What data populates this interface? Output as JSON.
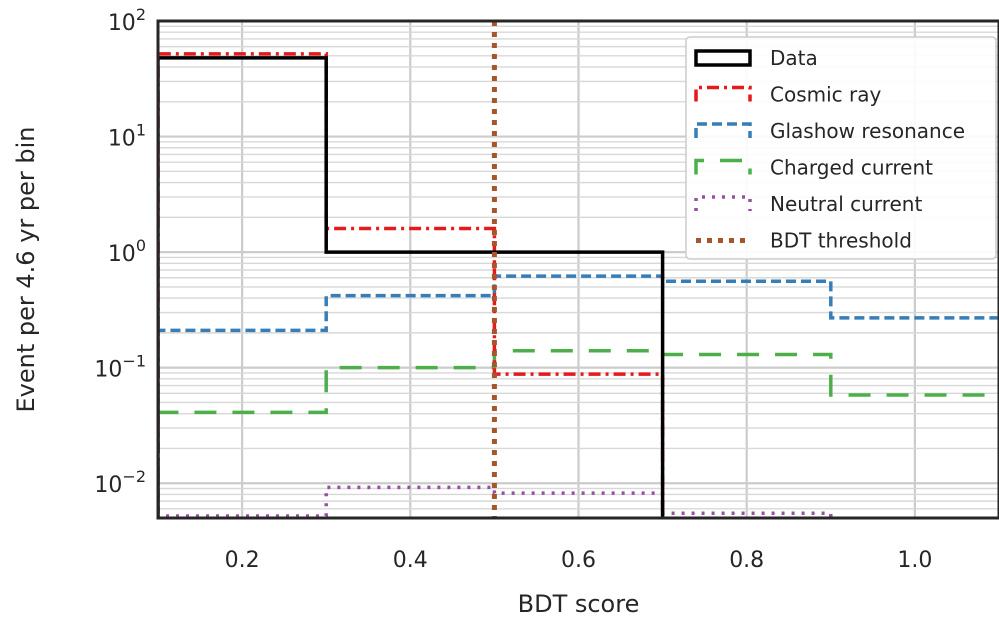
{
  "chart_data": {
    "type": "line",
    "step": "post",
    "title": "",
    "xlabel": "BDT score",
    "ylabel": "Event per 4.6 yr per bin",
    "xlim": [
      0.1,
      1.1
    ],
    "ylim": [
      0.005,
      100
    ],
    "yscale": "log",
    "grid": true,
    "legend_position": "top-right",
    "x_ticks": [
      {
        "value": 0.2,
        "label": "0.2"
      },
      {
        "value": 0.4,
        "label": "0.4"
      },
      {
        "value": 0.6,
        "label": "0.6"
      },
      {
        "value": 0.8,
        "label": "0.8"
      },
      {
        "value": 1.0,
        "label": "1.0"
      }
    ],
    "y_ticks": [
      {
        "value": 100,
        "base": "10",
        "exp": "2"
      },
      {
        "value": 10,
        "base": "10",
        "exp": "1"
      },
      {
        "value": 1,
        "base": "10",
        "exp": "0"
      },
      {
        "value": 0.1,
        "base": "10",
        "exp": "−1"
      },
      {
        "value": 0.01,
        "base": "10",
        "exp": "−2"
      }
    ],
    "bin_edges": [
      0.1,
      0.3,
      0.5,
      0.7,
      0.9,
      1.1
    ],
    "series": [
      {
        "name": "Data",
        "color": "#000000",
        "dash": "solid",
        "values": [
          48,
          1.0,
          1.0,
          null,
          null
        ]
      },
      {
        "name": "Cosmic ray",
        "color": "#e41a1c",
        "dash": "dashdot",
        "values": [
          52,
          1.6,
          0.088,
          null,
          null
        ]
      },
      {
        "name": "Glashow resonance",
        "color": "#377eb8",
        "dash": "dashed",
        "values": [
          0.21,
          0.42,
          0.62,
          0.56,
          0.27
        ]
      },
      {
        "name": "Charged current",
        "color": "#4daf4a",
        "dash": "longdash",
        "values": [
          0.041,
          0.1,
          0.14,
          0.13,
          0.058
        ]
      },
      {
        "name": "Neutral current",
        "color": "#984ea3",
        "dash": "dotted",
        "values": [
          0.0052,
          0.0092,
          0.0082,
          0.0055,
          null
        ]
      }
    ],
    "threshold": {
      "name": "BDT threshold",
      "x": 0.5,
      "color": "#a6562b",
      "dash": "dotted"
    }
  }
}
